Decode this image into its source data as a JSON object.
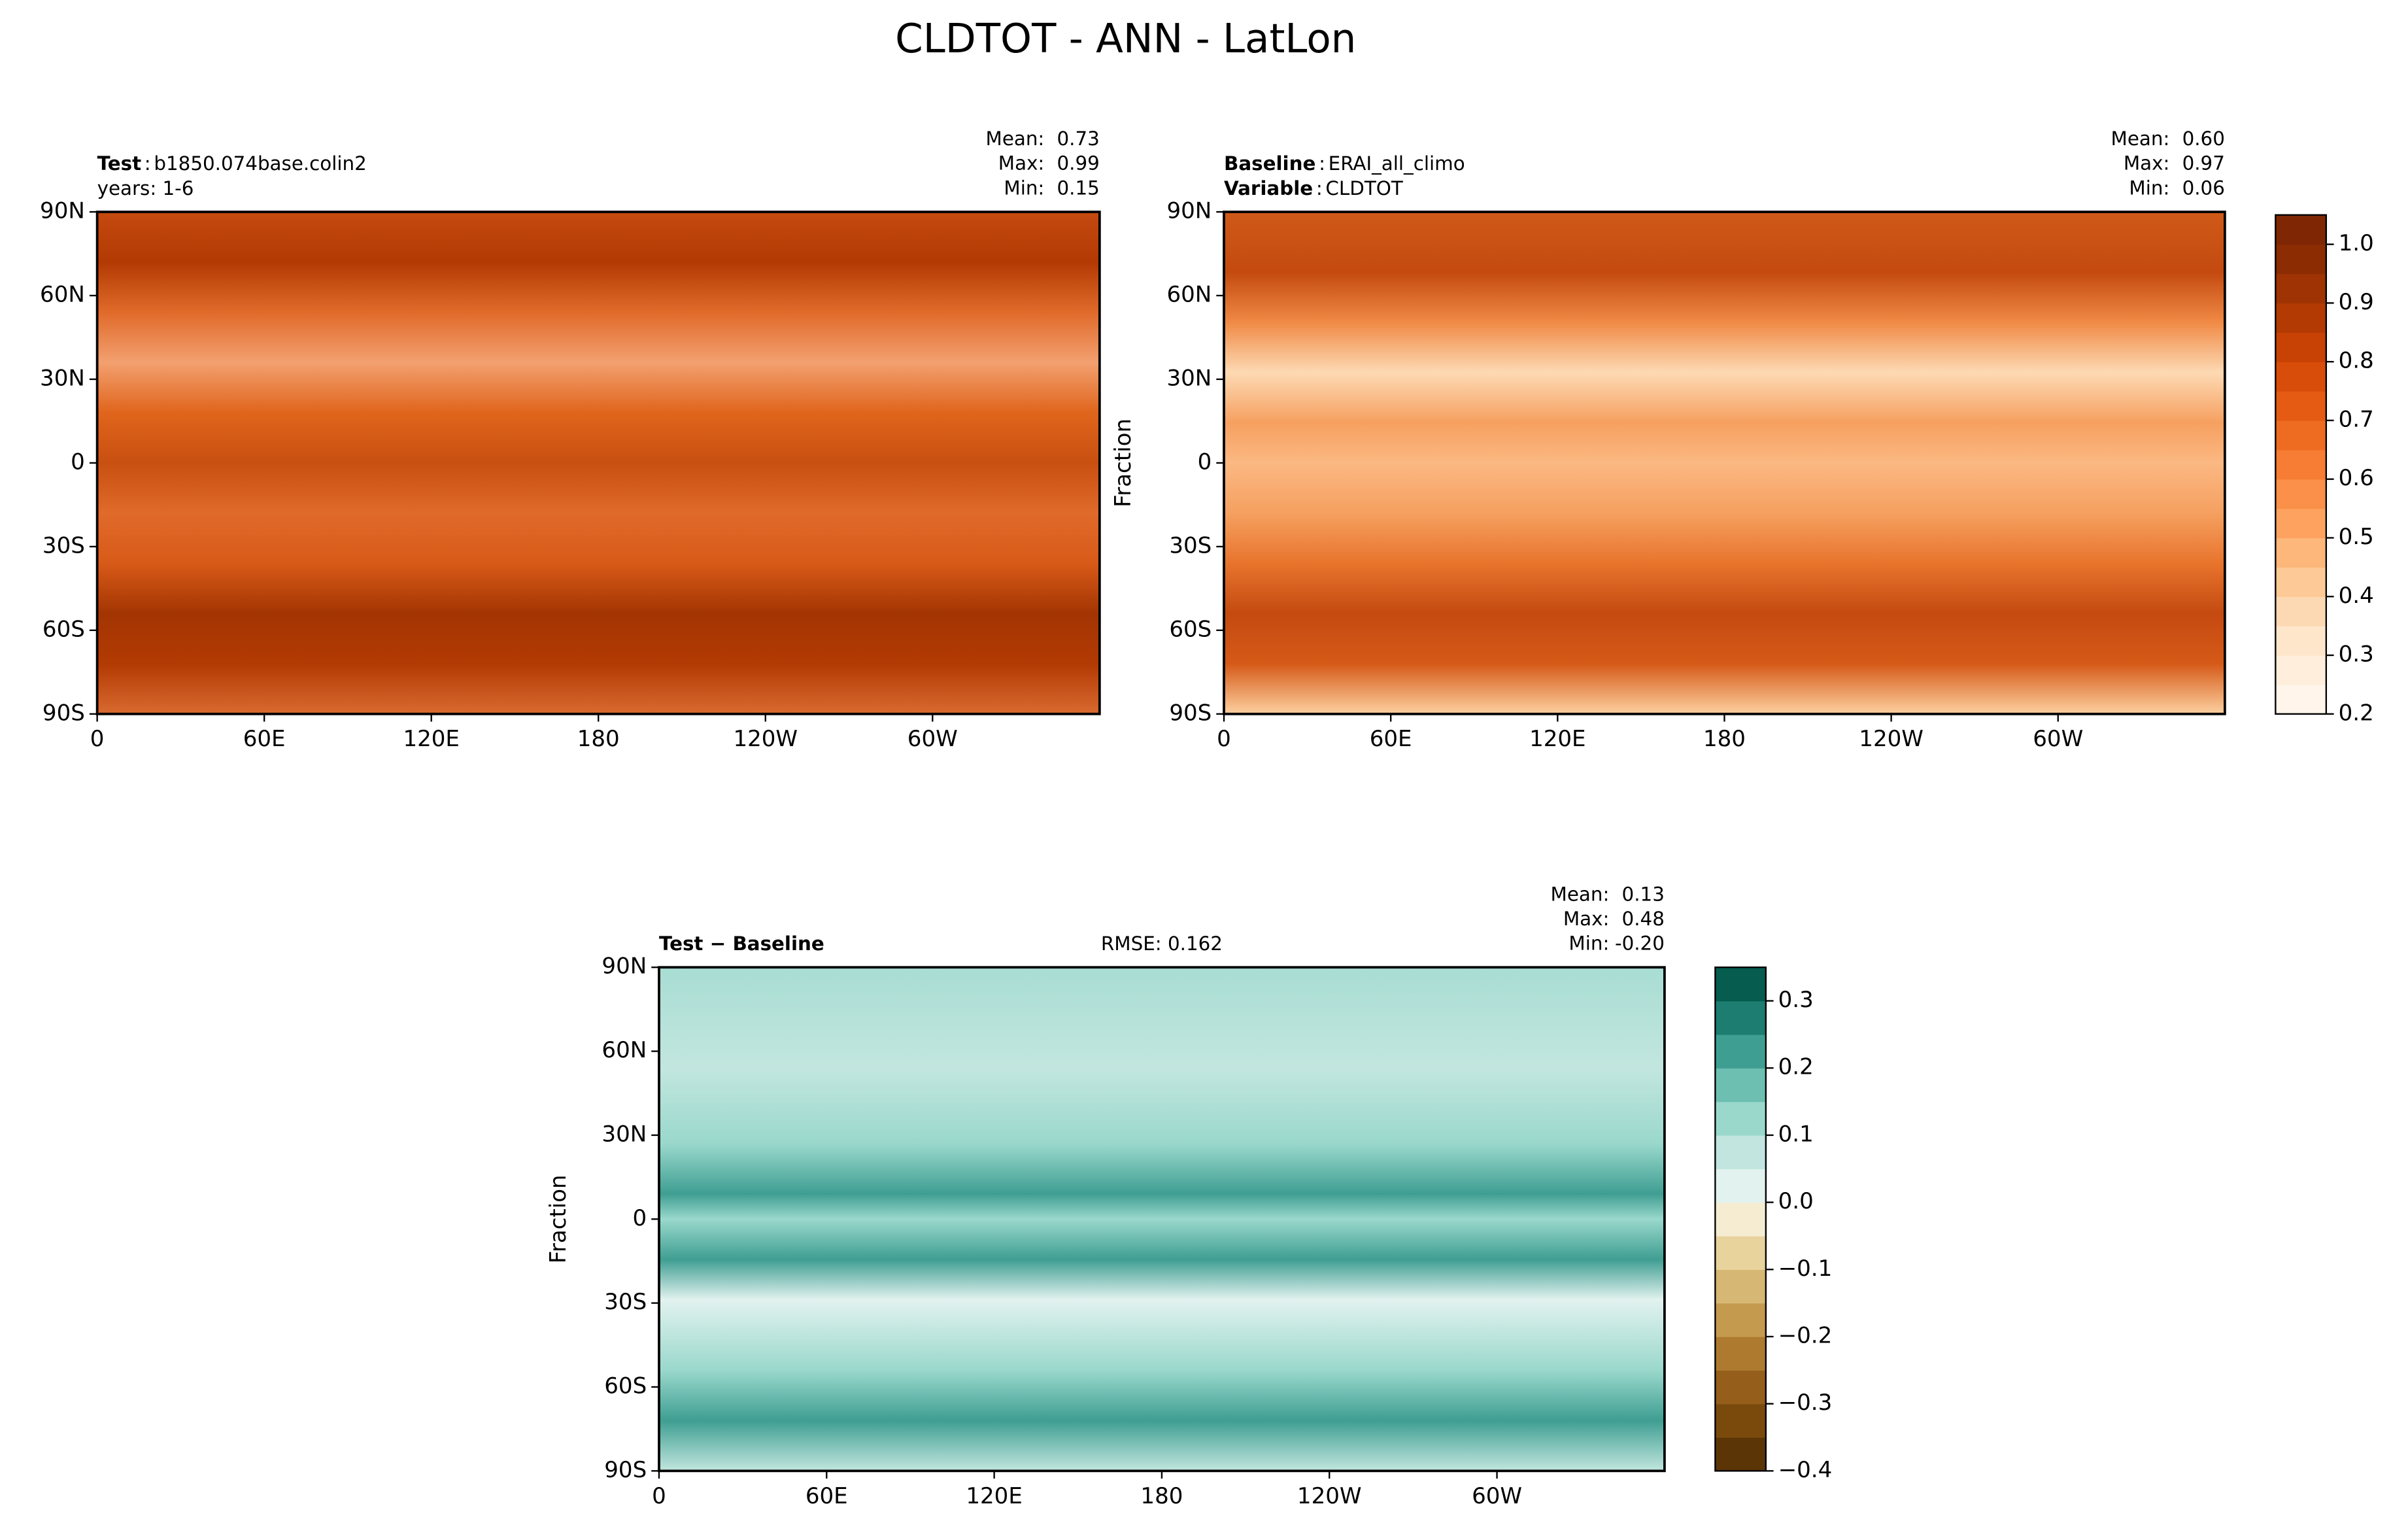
{
  "title": "CLDTOT - ANN - LatLon",
  "chart_data": [
    {
      "type": "map",
      "lines": [
        {
          "bold": "Test",
          "sep": ":",
          "text": "b1850.074base.colin2"
        },
        {
          "text": "years: 1-6"
        }
      ],
      "stats": [
        {
          "name": "Mean:",
          "value": 0.73
        },
        {
          "name": "Max:",
          "value": 0.99
        },
        {
          "name": "Min:",
          "value": 0.15
        }
      ],
      "xlim": [
        0,
        360
      ],
      "xticks": [
        0,
        {
          "value": 60,
          "label": "60E"
        },
        {
          "value": 120,
          "label": "120E"
        },
        180,
        {
          "value": 240,
          "label": "120W"
        },
        {
          "value": 300,
          "label": "60W"
        }
      ],
      "ylim": [
        -90,
        90
      ],
      "yticks": [
        {
          "value": 90,
          "label": "90N"
        },
        {
          "value": 60,
          "label": "60N"
        },
        {
          "value": 30,
          "label": "30N"
        },
        0,
        {
          "value": -30,
          "label": "30S"
        },
        {
          "value": -60,
          "label": "60S"
        },
        {
          "value": -90,
          "label": "90S"
        }
      ]
    },
    {
      "type": "map",
      "lines": [
        {
          "bold": "Baseline",
          "sep": ":",
          "text": "ERAI_all_climo"
        },
        {
          "bold": "Variable",
          "sep": ":",
          "text": "CLDTOT"
        }
      ],
      "stats": [
        {
          "name": "Mean:",
          "value": {
            "value": 0.6,
            "label": "0.60"
          }
        },
        {
          "name": "Max:",
          "value": 0.97
        },
        {
          "name": "Min:",
          "value": 0.06
        }
      ],
      "ylabel": "Fraction",
      "xlim": [
        0,
        360
      ],
      "xticks": [
        0,
        {
          "value": 60,
          "label": "60E"
        },
        {
          "value": 120,
          "label": "120E"
        },
        180,
        {
          "value": 240,
          "label": "120W"
        },
        {
          "value": 300,
          "label": "60W"
        }
      ],
      "ylim": [
        -90,
        90
      ],
      "yticks": [
        {
          "value": 90,
          "label": "90N"
        },
        {
          "value": 60,
          "label": "60N"
        },
        {
          "value": 30,
          "label": "30N"
        },
        0,
        {
          "value": -30,
          "label": "30S"
        },
        {
          "value": -60,
          "label": "60S"
        },
        {
          "value": -90,
          "label": "90S"
        }
      ],
      "colorbar": {
        "ylim": [
          0.2,
          1.05
        ],
        "yticks": [
          0.2,
          0.3,
          0.4,
          0.5,
          0.6,
          0.7,
          0.8,
          0.9,
          {
            "value": 1,
            "label": "1.0"
          }
        ],
        "colors": [
          "#fff5eb",
          "#feeedb",
          "#fee6cb",
          "#fdd9b3",
          "#fdc997",
          "#fdb77b",
          "#fda35f",
          "#fa9049",
          "#f67d33",
          "#ee6b22",
          "#e55b14",
          "#d84d0a",
          "#c74204",
          "#b33a03",
          "#9f3303",
          "#8c2c03",
          "#7f2704"
        ]
      }
    },
    {
      "type": "map",
      "lines": [
        {
          "bold": "Test − Baseline"
        }
      ],
      "rmse": {
        "label": "RMSE:",
        "value": 0.162
      },
      "stats": [
        {
          "name": "Mean:",
          "value": 0.13
        },
        {
          "name": "Max:",
          "value": 0.48
        },
        {
          "name": "Min:",
          "value": {
            "value": -0.2,
            "label": "-0.20"
          }
        }
      ],
      "ylabel": "Fraction",
      "xlim": [
        0,
        360
      ],
      "xticks": [
        0,
        {
          "value": 60,
          "label": "60E"
        },
        {
          "value": 120,
          "label": "120E"
        },
        180,
        {
          "value": 240,
          "label": "120W"
        },
        {
          "value": 300,
          "label": "60W"
        }
      ],
      "ylim": [
        -90,
        90
      ],
      "yticks": [
        {
          "value": 90,
          "label": "90N"
        },
        {
          "value": 60,
          "label": "60N"
        },
        {
          "value": 30,
          "label": "30N"
        },
        0,
        {
          "value": -30,
          "label": "30S"
        },
        {
          "value": -60,
          "label": "60S"
        },
        {
          "value": -90,
          "label": "90S"
        }
      ],
      "colorbar": {
        "ylim": [
          -0.4,
          0.35
        ],
        "yticks": [
          {
            "value": -0.4,
            "label": "−0.4"
          },
          {
            "value": -0.3,
            "label": "−0.3"
          },
          {
            "value": -0.2,
            "label": "−0.2"
          },
          {
            "value": -0.1,
            "label": "−0.1"
          },
          {
            "value": 0,
            "label": "0.0"
          },
          0.1,
          0.2,
          0.3
        ],
        "colors": [
          "#5c3507",
          "#7a4a0d",
          "#955e1a",
          "#ad7a2f",
          "#c49a4f",
          "#d6b773",
          "#e8d39d",
          "#f5ecd2",
          "#e2f2ef",
          "#c2e6df",
          "#9ad8cc",
          "#6cbfb1",
          "#3f9e92",
          "#1c7d70",
          "#055c4f"
        ]
      }
    }
  ]
}
